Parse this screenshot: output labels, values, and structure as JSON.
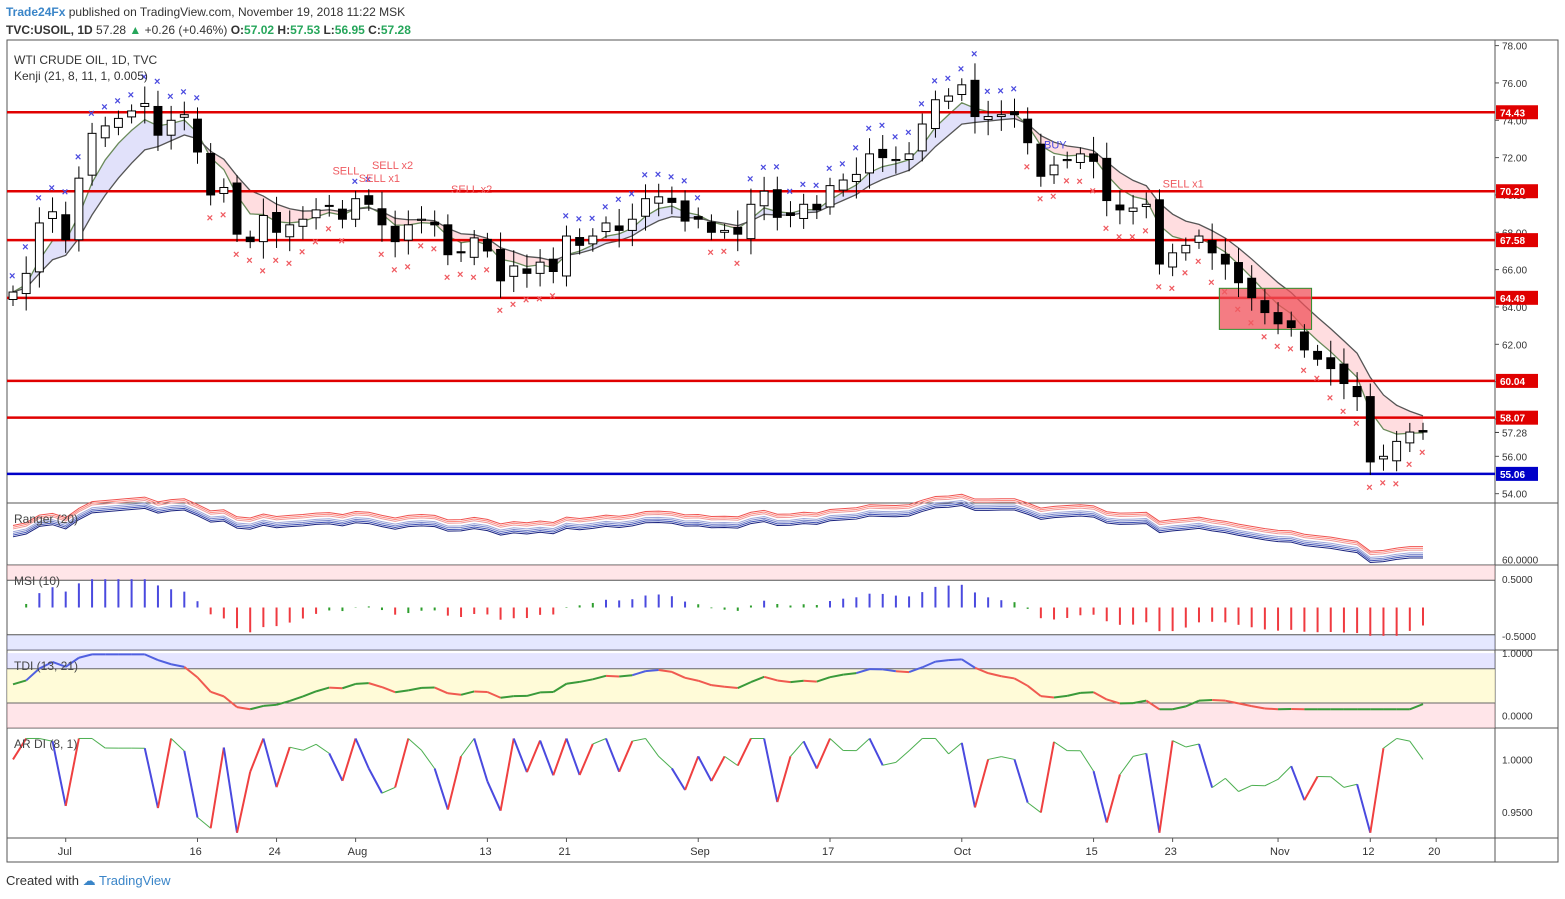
{
  "header": {
    "brand": "Trade24Fx",
    "published": "published on TradingView.com, November 19, 2018 11:22 MSK",
    "symbol": "TVC:USOIL, 1D",
    "last": "57.28",
    "change": "+0.26 (+0.46%)",
    "o_label": "O:",
    "o": "57.02",
    "h_label": "H:",
    "h": "57.53",
    "l_label": "L:",
    "l": "56.95",
    "c_label": "C:",
    "c": "57.28"
  },
  "footer": {
    "created": "Created with",
    "tv": "TradingView"
  },
  "colors": {
    "up": "#26a65b",
    "down": "#d32f2f",
    "level": "#e00000",
    "support": "#0000c8",
    "brand": "#3a85c8"
  },
  "chart_data": {
    "type": "candlestick",
    "title": "WTI CRUDE OIL, 1D, TVC",
    "indicator_label": "Kenji (21, 8, 11, 1, 0.005)",
    "ylim": [
      53.5,
      78.3
    ],
    "y_ticks": [
      "78.00",
      "76.00",
      "74.00",
      "72.00",
      "70.00",
      "68.00",
      "66.00",
      "64.00",
      "62.00",
      "60.00",
      "58.00",
      "56.00",
      "54.00"
    ],
    "x_ticks": [
      "Jul",
      "16",
      "24",
      "Aug",
      "13",
      "21",
      "Sep",
      "17",
      "Oct",
      "15",
      "23",
      "Nov",
      "12",
      "20"
    ],
    "levels": [
      {
        "value": 74.43,
        "label": "74.43",
        "color": "#e00000"
      },
      {
        "value": 70.2,
        "label": "70.20",
        "color": "#e00000"
      },
      {
        "value": 67.58,
        "label": "67.58",
        "color": "#e00000"
      },
      {
        "value": 64.49,
        "label": "64.49",
        "color": "#e00000"
      },
      {
        "value": 60.04,
        "label": "60.04",
        "color": "#e00000"
      },
      {
        "value": 58.07,
        "label": "58.07",
        "color": "#e00000"
      },
      {
        "value": 55.06,
        "label": "55.06",
        "color": "#0000c8"
      }
    ],
    "last_price": "57.28",
    "annotations": [
      "SELL",
      "SELL x1",
      "SELL x2",
      "SELL x2",
      "BUY",
      "SELL x1"
    ],
    "close": [
      64.8,
      65.8,
      68.5,
      69.1,
      67.6,
      70.9,
      73.3,
      73.7,
      74.1,
      74.5,
      74.9,
      73.2,
      74.0,
      74.3,
      72.3,
      70.0,
      70.4,
      67.9,
      67.5,
      68.9,
      68.0,
      68.4,
      68.7,
      69.2,
      69.4,
      68.7,
      69.8,
      69.5,
      68.4,
      67.5,
      68.4,
      68.7,
      68.4,
      66.8,
      66.9,
      67.7,
      67.0,
      65.4,
      66.2,
      65.8,
      66.4,
      65.9,
      67.8,
      67.3,
      67.8,
      68.5,
      68.1,
      68.7,
      69.8,
      69.9,
      69.6,
      68.6,
      68.7,
      68.0,
      68.1,
      67.9,
      69.5,
      70.2,
      68.8,
      68.9,
      69.5,
      69.2,
      70.5,
      70.8,
      71.1,
      72.2,
      72.0,
      71.9,
      72.2,
      73.8,
      75.1,
      75.3,
      75.9,
      74.2,
      74.2,
      74.3,
      74.3,
      72.8,
      71.0,
      71.6,
      71.9,
      72.2,
      71.8,
      69.7,
      69.2,
      69.3,
      69.5,
      66.3,
      66.9,
      67.3,
      67.8,
      66.9,
      66.3,
      65.3,
      64.5,
      63.7,
      63.1,
      62.9,
      61.7,
      61.2,
      60.7,
      59.9,
      59.2,
      55.7,
      56.0,
      56.8,
      57.3,
      57.3
    ],
    "ranger": {
      "ylim": [
        58.0,
        80.0
      ],
      "tick": "60.0000"
    },
    "msi": {
      "label": "MSI (10)",
      "ylim": [
        -0.75,
        0.75
      ],
      "ticks": [
        "0.5000",
        "-0.5000"
      ]
    },
    "tdi": {
      "label": "TDI (13, 21)",
      "ylim": [
        -0.2,
        1.05
      ],
      "ticks": [
        "1.0000",
        "0.0000"
      ]
    },
    "ardi": {
      "label": "AR DI (8, 1)",
      "ylim": [
        0.925,
        1.03
      ],
      "ticks": [
        "1.0000",
        "0.9500"
      ]
    },
    "ranger_label": "Ranger (20)"
  }
}
